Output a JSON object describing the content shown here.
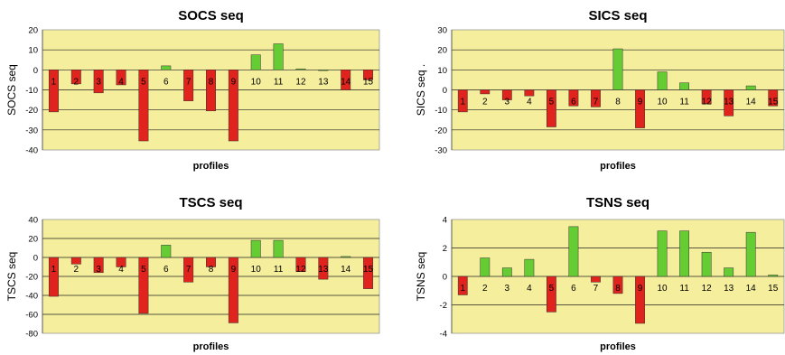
{
  "chart_data": [
    {
      "type": "bar",
      "title": "SOCS seq",
      "xlabel": "profiles",
      "ylabel": "SOCS seq",
      "ylim": [
        -40,
        20
      ],
      "yticks": [
        20,
        10,
        0,
        -10,
        -20,
        -30,
        -40
      ],
      "grid": true,
      "categories": [
        "1",
        "2",
        "3",
        "4",
        "5",
        "6",
        "7",
        "8",
        "9",
        "10",
        "11",
        "12",
        "13",
        "14",
        "15"
      ],
      "values": [
        -21,
        -7,
        -11.5,
        -7.5,
        -35.5,
        2,
        -15.5,
        -20.5,
        -35.5,
        7.5,
        13,
        0.5,
        0,
        -10,
        -5
      ],
      "colors": {
        "negative": "#e0231c",
        "positive": "#66cc33",
        "plot_bg": "#f5ee9c"
      }
    },
    {
      "type": "bar",
      "title": "SICS seq",
      "xlabel": "profiles",
      "ylabel": "SICS seq .",
      "ylim": [
        -30,
        30
      ],
      "yticks": [
        30,
        20,
        10,
        0,
        -10,
        -20,
        -30
      ],
      "grid": true,
      "categories": [
        "1",
        "2",
        "3",
        "4",
        "5",
        "6",
        "7",
        "8",
        "9",
        "10",
        "11",
        "12",
        "13",
        "14",
        "15"
      ],
      "values": [
        -11,
        -2,
        -5,
        -3,
        -18.5,
        -8,
        -8.5,
        20.5,
        -19,
        9,
        3.5,
        -7,
        -13,
        2,
        -8
      ],
      "colors": {
        "negative": "#e0231c",
        "positive": "#66cc33",
        "plot_bg": "#f5ee9c"
      }
    },
    {
      "type": "bar",
      "title": "TSCS seq",
      "xlabel": "profiles",
      "ylabel": "TSCS seq",
      "ylim": [
        -80,
        40
      ],
      "yticks": [
        40,
        20,
        0,
        -20,
        -40,
        -60,
        -80
      ],
      "grid": true,
      "categories": [
        "1",
        "2",
        "3",
        "4",
        "5",
        "6",
        "7",
        "8",
        "9",
        "10",
        "11",
        "12",
        "13",
        "14",
        "15"
      ],
      "values": [
        -41,
        -7,
        -16,
        -10,
        -59,
        13,
        -26,
        -10,
        -69,
        18,
        18,
        -15,
        -23,
        1,
        -33
      ],
      "colors": {
        "negative": "#e0231c",
        "positive": "#66cc33",
        "plot_bg": "#f5ee9c"
      }
    },
    {
      "type": "bar",
      "title": "TSNS seq",
      "xlabel": "profiles",
      "ylabel": "TSNS seq",
      "ylim": [
        -4,
        4
      ],
      "yticks": [
        4,
        2,
        0,
        -2,
        -4
      ],
      "grid": true,
      "categories": [
        "1",
        "2",
        "3",
        "4",
        "5",
        "6",
        "7",
        "8",
        "9",
        "10",
        "11",
        "12",
        "13",
        "14",
        "15"
      ],
      "values": [
        -1.3,
        1.3,
        0.6,
        1.2,
        -2.5,
        3.5,
        -0.4,
        -1.2,
        -3.3,
        3.2,
        3.2,
        1.7,
        0.6,
        3.1,
        0.1
      ],
      "colors": {
        "negative": "#e0231c",
        "positive": "#66cc33",
        "plot_bg": "#f5ee9c"
      }
    }
  ]
}
